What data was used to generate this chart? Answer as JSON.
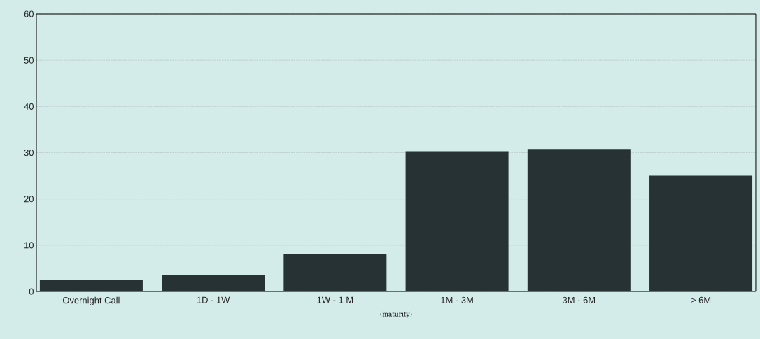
{
  "chart_data": {
    "type": "bar",
    "xlabel": "(maturity)",
    "categories": [
      "Overnight Call",
      "1D - 1W",
      "1W - 1 M",
      "1M - 3M",
      "3M - 6M",
      "> 6M"
    ],
    "values": [
      2.5,
      3.6,
      8.0,
      30.3,
      30.8,
      25.0
    ],
    "color": "#263234",
    "ylim": [
      0,
      60
    ],
    "yticks": [
      0,
      10,
      20,
      30,
      40,
      50,
      60
    ],
    "grid": "y"
  }
}
